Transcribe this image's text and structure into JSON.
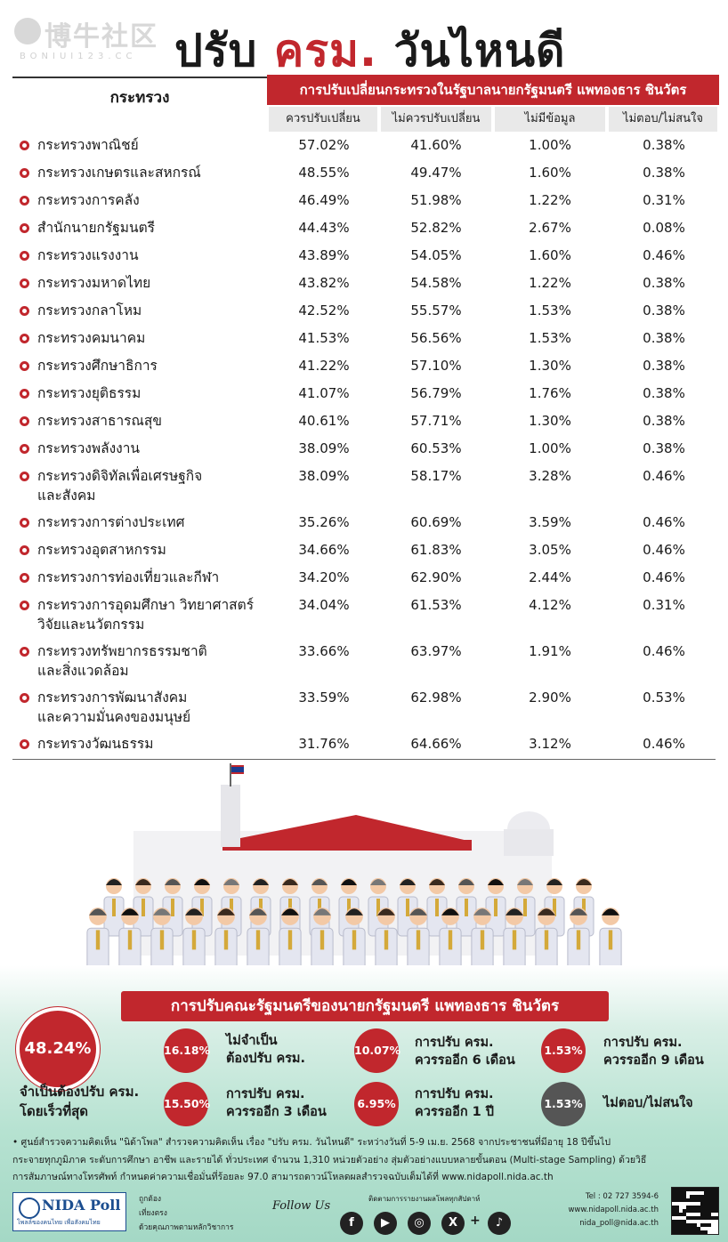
{
  "watermark": {
    "cn": "博牛社区",
    "en": "BONIUI123.CC"
  },
  "title": {
    "part1": "ปรับ",
    "part2": "ครม.",
    "part3": "วันไหนดี"
  },
  "table": {
    "ministry_header": "กระทรวง",
    "group_header": "การปรับเปลี่ยนกระทรวงในรัฐบาลนายกรัฐมนตรี แพทองธาร ชินวัตร",
    "columns": [
      "ควรปรับเปลี่ยน",
      "ไม่ควรปรับเปลี่ยน",
      "ไม่มีข้อมูล",
      "ไม่ตอบ/ไม่สนใจ"
    ],
    "rows": [
      {
        "name1": "กระทรวงพาณิชย์",
        "name2": "",
        "v": [
          "57.02%",
          "41.60%",
          "1.00%",
          "0.38%"
        ]
      },
      {
        "name1": "กระทรวงเกษตรและสหกรณ์",
        "name2": "",
        "v": [
          "48.55%",
          "49.47%",
          "1.60%",
          "0.38%"
        ]
      },
      {
        "name1": "กระทรวงการคลัง",
        "name2": "",
        "v": [
          "46.49%",
          "51.98%",
          "1.22%",
          "0.31%"
        ]
      },
      {
        "name1": "สำนักนายกรัฐมนตรี",
        "name2": "",
        "v": [
          "44.43%",
          "52.82%",
          "2.67%",
          "0.08%"
        ]
      },
      {
        "name1": "กระทรวงแรงงาน",
        "name2": "",
        "v": [
          "43.89%",
          "54.05%",
          "1.60%",
          "0.46%"
        ]
      },
      {
        "name1": "กระทรวงมหาดไทย",
        "name2": "",
        "v": [
          "43.82%",
          "54.58%",
          "1.22%",
          "0.38%"
        ]
      },
      {
        "name1": "กระทรวงกลาโหม",
        "name2": "",
        "v": [
          "42.52%",
          "55.57%",
          "1.53%",
          "0.38%"
        ]
      },
      {
        "name1": "กระทรวงคมนาคม",
        "name2": "",
        "v": [
          "41.53%",
          "56.56%",
          "1.53%",
          "0.38%"
        ]
      },
      {
        "name1": "กระทรวงศึกษาธิการ",
        "name2": "",
        "v": [
          "41.22%",
          "57.10%",
          "1.30%",
          "0.38%"
        ]
      },
      {
        "name1": "กระทรวงยุติธรรม",
        "name2": "",
        "v": [
          "41.07%",
          "56.79%",
          "1.76%",
          "0.38%"
        ]
      },
      {
        "name1": "กระทรวงสาธารณสุข",
        "name2": "",
        "v": [
          "40.61%",
          "57.71%",
          "1.30%",
          "0.38%"
        ]
      },
      {
        "name1": "กระทรวงพลังงาน",
        "name2": "",
        "v": [
          "38.09%",
          "60.53%",
          "1.00%",
          "0.38%"
        ]
      },
      {
        "name1": "กระทรวงดิจิทัลเพื่อเศรษฐกิจ",
        "name2": "และสังคม",
        "v": [
          "38.09%",
          "58.17%",
          "3.28%",
          "0.46%"
        ]
      },
      {
        "name1": "กระทรวงการต่างประเทศ",
        "name2": "",
        "v": [
          "35.26%",
          "60.69%",
          "3.59%",
          "0.46%"
        ]
      },
      {
        "name1": "กระทรวงอุตสาหกรรม",
        "name2": "",
        "v": [
          "34.66%",
          "61.83%",
          "3.05%",
          "0.46%"
        ]
      },
      {
        "name1": "กระทรวงการท่องเที่ยวและกีฬา",
        "name2": "",
        "v": [
          "34.20%",
          "62.90%",
          "2.44%",
          "0.46%"
        ]
      },
      {
        "name1": "กระทรวงการอุดมศึกษา วิทยาศาสตร์",
        "name2": "วิจัยและนวัตกรรม",
        "v": [
          "34.04%",
          "61.53%",
          "4.12%",
          "0.31%"
        ]
      },
      {
        "name1": "กระทรวงทรัพยากรธรรมชาติ",
        "name2": "และสิ่งแวดล้อม",
        "v": [
          "33.66%",
          "63.97%",
          "1.91%",
          "0.46%"
        ]
      },
      {
        "name1": "กระทรวงการพัฒนาสังคม",
        "name2": "และความมั่นคงของมนุษย์",
        "v": [
          "33.59%",
          "62.98%",
          "2.90%",
          "0.53%"
        ]
      },
      {
        "name1": "กระทรวงวัฒนธรรม",
        "name2": "",
        "v": [
          "31.76%",
          "64.66%",
          "3.12%",
          "0.46%"
        ]
      }
    ]
  },
  "summary": {
    "bar": "การปรับคณะรัฐมนตรีของนายกรัฐมนตรี แพทองธาร ชินวัตร",
    "big_value": "48.24%",
    "big_caption1": "จำเป็นต้องปรับ ครม.",
    "big_caption2": "โดยเร็วที่สุด",
    "items": [
      {
        "pct": "16.18%",
        "l1": "ไม่จำเป็น",
        "l2": "ต้องปรับ ครม."
      },
      {
        "pct": "10.07%",
        "l1": "การปรับ ครม.",
        "l2": "ควรรออีก 6 เดือน"
      },
      {
        "pct": "1.53%",
        "l1": "การปรับ ครม.",
        "l2": "ควรรออีก 9 เดือน"
      },
      {
        "pct": "15.50%",
        "l1": "การปรับ ครม.",
        "l2": "ควรรออีก 3 เดือน"
      },
      {
        "pct": "6.95%",
        "l1": "การปรับ ครม.",
        "l2": "ควรรออีก 1 ปี"
      },
      {
        "pct": "1.53%",
        "l1": "ไม่ตอบ/ไม่สนใจ",
        "l2": ""
      }
    ]
  },
  "footnote": {
    "line1": "• ศูนย์สำรวจความคิดเห็น \"นิด้าโพล\" สำรวจความคิดเห็น เรื่อง \"ปรับ ครม. วันไหนดี\" ระหว่างวันที่ 5-9 เม.ย. 2568 จากประชาชนที่มีอายุ 18 ปีขึ้นไป",
    "line2": "กระจายทุกภูมิภาค ระดับการศึกษา อาชีพ และรายได้ ทั่วประเทศ จำนวน 1,310 หน่วยตัวอย่าง สุ่มตัวอย่างแบบหลายขั้นตอน (Multi-stage Sampling) ด้วยวิธี",
    "line3": "การสัมภาษณ์ทางโทรศัพท์ กำหนดค่าความเชื่อมั่นที่ร้อยละ 97.0 สามารถดาวน์โหลดผลสำรวจฉบับเต็มได้ที่ www.nidapoll.nida.ac.th"
  },
  "brand": {
    "name": "NIDA Poll",
    "sub": "โพลล์ของคนไทย เพื่อสังคมไทย",
    "tag1": "ถูกต้อง",
    "tag2": "เที่ยงตรง",
    "tag3": "ด้วยคุณภาพตามหลักวิชาการ"
  },
  "follow": {
    "label": "Follow Us",
    "sub": "ติดตามการรายงานผลโพลทุกสัปดาห์",
    "icons": [
      "f",
      "▶",
      "◎",
      "X",
      "+",
      "♪"
    ]
  },
  "contact": {
    "tel": "Tel : 02 727 3594-6",
    "web": "www.nidapoll.nida.ac.th",
    "mail": "nida_poll@nida.ac.th"
  },
  "colors": {
    "accent": "#c1272d",
    "green": "#a4d8c5"
  }
}
